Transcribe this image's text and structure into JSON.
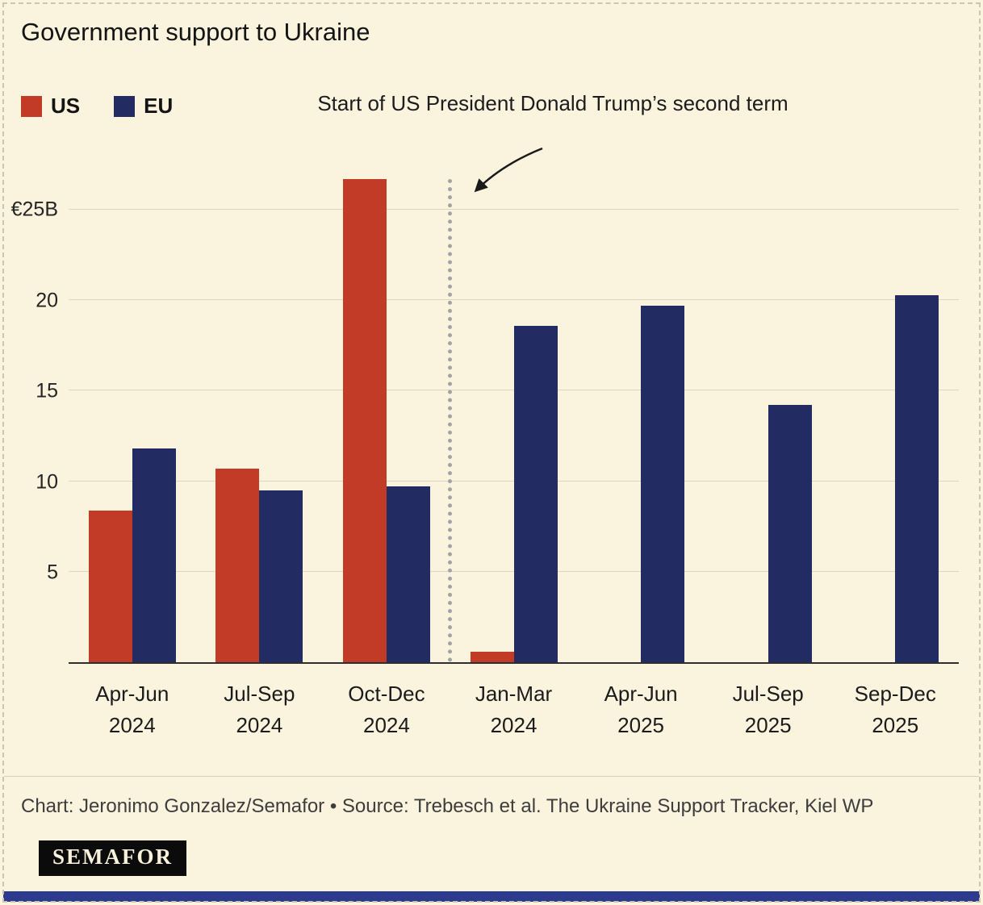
{
  "page": {
    "title": "Government support to Ukraine",
    "background": "#faf3de"
  },
  "legend": {
    "items": [
      {
        "label": "US",
        "color": "#c23b26"
      },
      {
        "label": "EU",
        "color": "#222c62"
      }
    ]
  },
  "annotation": {
    "text": "Start of US President Donald Trump’s second term"
  },
  "chart_data": {
    "type": "bar",
    "title": "Government support to Ukraine",
    "unit": "€B",
    "categories": [
      {
        "quarter": "Apr-Jun",
        "year": "2024"
      },
      {
        "quarter": "Jul-Sep",
        "year": "2024"
      },
      {
        "quarter": "Oct-Dec",
        "year": "2024"
      },
      {
        "quarter": "Jan-Mar",
        "year": "2024"
      },
      {
        "quarter": "Apr-Jun",
        "year": "2025"
      },
      {
        "quarter": "Jul-Sep",
        "year": "2025"
      },
      {
        "quarter": "Sep-Dec",
        "year": "2025"
      }
    ],
    "series": [
      {
        "name": "US",
        "color": "#c23b26",
        "values": [
          8.4,
          10.7,
          26.7,
          0.6,
          0,
          0,
          0
        ]
      },
      {
        "name": "EU",
        "color": "#222c62",
        "values": [
          11.8,
          9.5,
          9.7,
          18.6,
          19.7,
          14.2,
          20.3
        ]
      }
    ],
    "yticks": [
      {
        "value": 25,
        "label": "€25B"
      },
      {
        "value": 20,
        "label": "20"
      },
      {
        "value": 15,
        "label": "15"
      },
      {
        "value": 10,
        "label": "10"
      },
      {
        "value": 5,
        "label": "5"
      }
    ],
    "ylim": [
      0,
      26.7
    ],
    "grid": true,
    "legend_position": "top-left",
    "separator": {
      "after_category_index": 2,
      "style": "dotted-vertical",
      "label": "Start of US President Donald Trump’s second term"
    }
  },
  "footer": {
    "credit": "Chart: Jeronimo Gonzalez/Semafor • Source: Trebesch et al. The Ukraine Support Tracker, Kiel WP"
  },
  "logo": {
    "text": "SEMAFOR"
  }
}
